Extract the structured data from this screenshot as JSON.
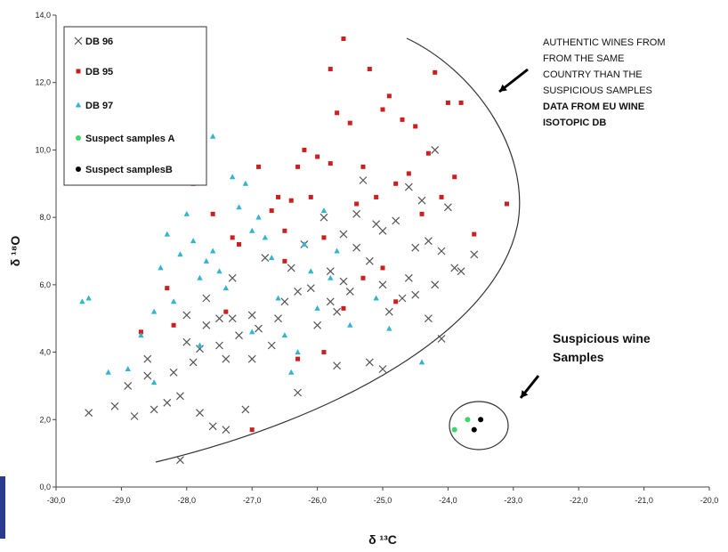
{
  "chart_data": {
    "type": "scatter",
    "xlabel": "δ ¹³C",
    "ylabel": "δ ¹⁸O",
    "xlim": [
      -30,
      -20
    ],
    "ylim": [
      0,
      14
    ],
    "xticks": [
      "-30,0",
      "-29,0",
      "-28,0",
      "-27,0",
      "-26,0",
      "-25,0",
      "-24,0",
      "-23,0",
      "-22,0",
      "-21,0",
      "-20,0"
    ],
    "yticks": [
      "0,0",
      "2,0",
      "4,0",
      "6,0",
      "8,0",
      "10,0",
      "12,0",
      "14,0"
    ],
    "legend_position": "top-left",
    "grid": false,
    "series": [
      {
        "name": "DB 96",
        "marker": "x",
        "color": "#555555",
        "points": [
          [
            -29.5,
            2.2
          ],
          [
            -29.1,
            2.4
          ],
          [
            -28.9,
            3.0
          ],
          [
            -28.8,
            2.1
          ],
          [
            -28.6,
            3.8
          ],
          [
            -28.5,
            2.3
          ],
          [
            -28.6,
            3.3
          ],
          [
            -28.3,
            2.5
          ],
          [
            -28.2,
            3.4
          ],
          [
            -28.1,
            2.7
          ],
          [
            -28.0,
            4.3
          ],
          [
            -28.0,
            5.1
          ],
          [
            -27.9,
            3.7
          ],
          [
            -27.8,
            4.1
          ],
          [
            -27.8,
            2.2
          ],
          [
            -27.7,
            4.8
          ],
          [
            -27.7,
            5.6
          ],
          [
            -27.6,
            1.8
          ],
          [
            -27.5,
            5.0
          ],
          [
            -27.5,
            4.2
          ],
          [
            -27.4,
            1.7
          ],
          [
            -27.4,
            3.8
          ],
          [
            -27.3,
            5.0
          ],
          [
            -27.3,
            6.2
          ],
          [
            -27.2,
            4.5
          ],
          [
            -27.1,
            2.3
          ],
          [
            -27.0,
            5.1
          ],
          [
            -27.0,
            3.8
          ],
          [
            -26.9,
            4.7
          ],
          [
            -26.8,
            6.8
          ],
          [
            -26.7,
            4.2
          ],
          [
            -26.6,
            5.0
          ],
          [
            -26.5,
            5.5
          ],
          [
            -26.4,
            6.5
          ],
          [
            -26.3,
            5.8
          ],
          [
            -26.3,
            2.8
          ],
          [
            -26.2,
            7.2
          ],
          [
            -26.1,
            5.9
          ],
          [
            -26.0,
            4.8
          ],
          [
            -25.9,
            8.0
          ],
          [
            -25.8,
            6.4
          ],
          [
            -25.8,
            5.5
          ],
          [
            -25.7,
            5.2
          ],
          [
            -25.7,
            3.6
          ],
          [
            -25.6,
            7.5
          ],
          [
            -25.6,
            6.1
          ],
          [
            -25.5,
            5.8
          ],
          [
            -25.4,
            7.1
          ],
          [
            -25.4,
            8.1
          ],
          [
            -25.3,
            9.1
          ],
          [
            -25.2,
            6.7
          ],
          [
            -25.2,
            3.7
          ],
          [
            -25.1,
            7.8
          ],
          [
            -25.0,
            6.0
          ],
          [
            -25.0,
            7.6
          ],
          [
            -25.0,
            3.5
          ],
          [
            -24.9,
            5.2
          ],
          [
            -24.8,
            7.9
          ],
          [
            -24.7,
            5.6
          ],
          [
            -24.6,
            8.9
          ],
          [
            -24.6,
            6.2
          ],
          [
            -24.5,
            7.1
          ],
          [
            -24.5,
            5.7
          ],
          [
            -24.4,
            8.5
          ],
          [
            -24.3,
            7.3
          ],
          [
            -24.3,
            5.0
          ],
          [
            -24.2,
            10.0
          ],
          [
            -24.2,
            6.0
          ],
          [
            -24.1,
            7.0
          ],
          [
            -24.1,
            4.4
          ],
          [
            -24.0,
            8.3
          ],
          [
            -23.9,
            6.5
          ],
          [
            -23.8,
            6.4
          ],
          [
            -23.6,
            6.9
          ],
          [
            -28.1,
            0.8
          ]
        ]
      },
      {
        "name": "DB 95",
        "marker": "square",
        "color": "#cc1f1f",
        "points": [
          [
            -28.7,
            4.6
          ],
          [
            -28.3,
            5.9
          ],
          [
            -28.2,
            4.8
          ],
          [
            -27.9,
            9.0
          ],
          [
            -27.6,
            8.1
          ],
          [
            -27.4,
            5.2
          ],
          [
            -27.3,
            7.4
          ],
          [
            -27.2,
            7.2
          ],
          [
            -27.0,
            1.7
          ],
          [
            -26.9,
            9.5
          ],
          [
            -26.7,
            8.2
          ],
          [
            -26.6,
            8.6
          ],
          [
            -26.5,
            7.6
          ],
          [
            -26.4,
            8.5
          ],
          [
            -26.3,
            9.5
          ],
          [
            -26.2,
            10.0
          ],
          [
            -26.1,
            8.6
          ],
          [
            -26.0,
            9.8
          ],
          [
            -25.9,
            7.4
          ],
          [
            -25.8,
            12.4
          ],
          [
            -25.8,
            9.6
          ],
          [
            -25.7,
            11.1
          ],
          [
            -25.6,
            13.3
          ],
          [
            -25.5,
            10.8
          ],
          [
            -25.4,
            8.4
          ],
          [
            -25.3,
            9.5
          ],
          [
            -25.2,
            12.4
          ],
          [
            -25.1,
            8.6
          ],
          [
            -25.0,
            11.2
          ],
          [
            -24.9,
            11.6
          ],
          [
            -24.8,
            9.0
          ],
          [
            -24.7,
            10.9
          ],
          [
            -24.6,
            9.3
          ],
          [
            -24.5,
            10.7
          ],
          [
            -24.4,
            8.1
          ],
          [
            -24.3,
            9.9
          ],
          [
            -24.2,
            12.3
          ],
          [
            -24.1,
            8.6
          ],
          [
            -24.0,
            11.4
          ],
          [
            -23.9,
            9.2
          ],
          [
            -23.8,
            11.4
          ],
          [
            -23.6,
            7.5
          ],
          [
            -23.1,
            8.4
          ],
          [
            -25.6,
            5.3
          ],
          [
            -26.3,
            3.8
          ],
          [
            -25.9,
            4.0
          ],
          [
            -25.0,
            6.5
          ],
          [
            -24.8,
            5.5
          ],
          [
            -25.3,
            6.2
          ],
          [
            -26.5,
            6.7
          ]
        ]
      },
      {
        "name": "DB 97",
        "marker": "triangle",
        "color": "#33b5cf",
        "points": [
          [
            -29.6,
            5.5
          ],
          [
            -29.5,
            5.6
          ],
          [
            -29.2,
            3.4
          ],
          [
            -28.9,
            3.5
          ],
          [
            -28.7,
            4.5
          ],
          [
            -28.5,
            5.2
          ],
          [
            -28.4,
            6.5
          ],
          [
            -28.3,
            7.5
          ],
          [
            -28.2,
            5.5
          ],
          [
            -28.1,
            6.9
          ],
          [
            -28.0,
            8.1
          ],
          [
            -27.9,
            7.3
          ],
          [
            -27.8,
            6.2
          ],
          [
            -27.7,
            6.7
          ],
          [
            -27.6,
            7.0
          ],
          [
            -27.5,
            6.4
          ],
          [
            -27.4,
            5.9
          ],
          [
            -27.3,
            9.2
          ],
          [
            -27.2,
            8.3
          ],
          [
            -27.1,
            9.0
          ],
          [
            -27.0,
            7.6
          ],
          [
            -26.9,
            8.0
          ],
          [
            -26.8,
            7.4
          ],
          [
            -26.7,
            6.8
          ],
          [
            -26.6,
            5.6
          ],
          [
            -26.5,
            4.5
          ],
          [
            -26.4,
            3.4
          ],
          [
            -26.3,
            4.0
          ],
          [
            -26.2,
            7.2
          ],
          [
            -26.1,
            6.4
          ],
          [
            -26.0,
            5.3
          ],
          [
            -25.9,
            8.2
          ],
          [
            -25.8,
            6.2
          ],
          [
            -25.7,
            7.0
          ],
          [
            -27.6,
            10.4
          ],
          [
            -27.0,
            4.6
          ],
          [
            -24.4,
            3.7
          ],
          [
            -25.5,
            4.8
          ],
          [
            -25.1,
            5.6
          ],
          [
            -24.9,
            4.7
          ],
          [
            -27.8,
            4.2
          ],
          [
            -28.5,
            3.1
          ]
        ]
      },
      {
        "name": "Suspect samples A",
        "marker": "circle",
        "color": "#3dd66a",
        "points": [
          [
            -23.9,
            1.7
          ],
          [
            -23.7,
            2.0
          ]
        ]
      },
      {
        "name": "Suspect samplesB",
        "marker": "circle",
        "color": "#000000",
        "points": [
          [
            -23.6,
            1.7
          ],
          [
            -23.5,
            2.0
          ]
        ]
      }
    ],
    "annotations": {
      "authentic_note": [
        "AUTHENTIC WINES FROM",
        "FROM THE SAME",
        "COUNTRY THAN THE",
        "SUSPICIOUS SAMPLES"
      ],
      "authentic_note_bold": [
        "DATA FROM EU WINE",
        "ISOTOPIC DB"
      ],
      "suspicious_note": [
        "Suspicious wine",
        "Samples"
      ]
    }
  }
}
